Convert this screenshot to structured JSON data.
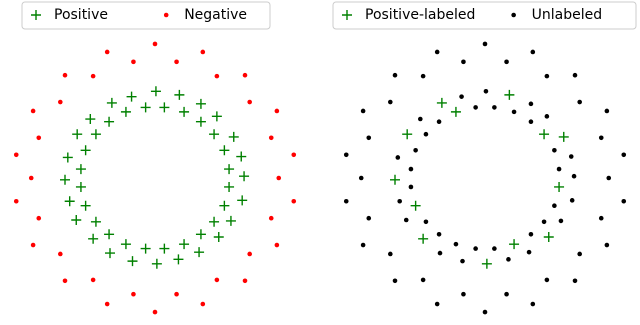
{
  "chart_data": [
    {
      "type": "scatter",
      "xlim": [
        -1.6,
        1.6
      ],
      "ylim": [
        -1.6,
        1.6
      ],
      "legend": "upper center",
      "series": [
        {
          "name": "Positive",
          "color": "#008000",
          "marker": "+",
          "x": [
            0.95,
            0.92,
            0.84,
            0.66,
            0.49,
            0.26,
            0.01,
            -0.25,
            -0.46,
            -0.69,
            -0.83,
            -0.93,
            -0.96,
            -0.91,
            -0.84,
            -0.66,
            -0.48,
            -0.24,
            0.02,
            0.25,
            0.47,
            0.68,
            0.81,
            0.93,
            0.79,
            0.74,
            0.63,
            0.49,
            0.31,
            0.1,
            -0.1,
            -0.31,
            -0.49,
            -0.63,
            -0.74,
            -0.79,
            -0.79,
            -0.74,
            -0.63,
            -0.49,
            -0.31,
            -0.1,
            0.1,
            0.31,
            0.49,
            0.63,
            0.74,
            0.79
          ],
          "y": [
            0.02,
            0.24,
            0.46,
            0.69,
            0.83,
            0.93,
            0.97,
            0.91,
            0.84,
            0.66,
            0.49,
            0.23,
            -0.02,
            -0.26,
            -0.47,
            -0.68,
            -0.84,
            -0.93,
            -0.96,
            -0.91,
            -0.83,
            -0.66,
            -0.48,
            -0.25,
            0.1,
            0.31,
            0.49,
            0.63,
            0.74,
            0.79,
            0.79,
            0.74,
            0.63,
            0.49,
            0.31,
            0.1,
            -0.1,
            -0.31,
            -0.49,
            -0.63,
            -0.74,
            -0.79,
            -0.79,
            -0.74,
            -0.63,
            -0.49,
            -0.31,
            -0.1
          ]
        },
        {
          "name": "Negative",
          "color": "#ff0000",
          "marker": "o",
          "x": [
            1.32,
            1.48,
            1.24,
            1.3,
            1.01,
            0.96,
            0.66,
            0.51,
            0.23,
            0,
            -0.23,
            -0.51,
            -0.66,
            -0.96,
            -1.01,
            -1.3,
            -1.24,
            -1.48,
            -1.32,
            -1.48,
            -1.24,
            -1.3,
            -1.01,
            -0.96,
            -0.66,
            -0.51,
            -0.23,
            0,
            0.23,
            0.51,
            0.66,
            0.96,
            1.01,
            1.3,
            1.24,
            1.48
          ],
          "y": [
            0,
            0.26,
            0.45,
            0.75,
            0.85,
            1.15,
            1.14,
            1.41,
            1.3,
            1.5,
            1.3,
            1.41,
            1.14,
            1.15,
            0.85,
            0.75,
            0.45,
            0.26,
            0,
            -0.26,
            -0.45,
            -0.75,
            -0.85,
            -1.15,
            -1.14,
            -1.41,
            -1.3,
            -1.5,
            -1.3,
            -1.41,
            -1.14,
            -1.15,
            -0.85,
            -0.75,
            -0.45,
            -0.26
          ]
        }
      ]
    },
    {
      "type": "scatter",
      "xlim": [
        -1.6,
        1.6
      ],
      "ylim": [
        -1.6,
        1.6
      ],
      "legend": "upper center",
      "series": [
        {
          "name": "Positive-labeled",
          "color": "#008000",
          "marker": "+",
          "x": [
            0.84,
            0.26,
            -0.46,
            -0.83,
            -0.96,
            -0.66,
            0.02,
            0.68,
            0.63,
            -0.31,
            -0.74,
            0.31,
            0.79
          ],
          "y": [
            0.46,
            0.93,
            0.84,
            0.49,
            -0.02,
            -0.68,
            -0.96,
            -0.66,
            0.49,
            0.74,
            -0.31,
            -0.74,
            -0.1
          ]
        },
        {
          "name": "Unlabeled",
          "color": "#000000",
          "marker": "o",
          "x": [
            0.95,
            0.92,
            0.66,
            0.49,
            0.01,
            -0.25,
            -0.69,
            -0.93,
            -0.91,
            -0.84,
            -0.48,
            -0.24,
            0.25,
            0.47,
            0.81,
            0.93,
            0.79,
            0.74,
            0.49,
            0.31,
            0.1,
            -0.1,
            -0.49,
            -0.63,
            -0.74,
            -0.79,
            -0.79,
            -0.63,
            -0.49,
            -0.31,
            -0.1,
            0.1,
            0.49,
            0.63,
            0.74,
            1.32,
            1.48,
            1.24,
            1.3,
            1.01,
            0.96,
            0.66,
            0.51,
            0.23,
            0,
            -0.23,
            -0.51,
            -0.66,
            -0.96,
            -1.01,
            -1.3,
            -1.24,
            -1.48,
            -1.32,
            -1.48,
            -1.24,
            -1.3,
            -1.01,
            -0.96,
            -0.66,
            -0.51,
            -0.23,
            0,
            0.23,
            0.51,
            0.66,
            0.96,
            1.01,
            1.3,
            1.24,
            1.48
          ],
          "y": [
            0.02,
            0.24,
            0.69,
            0.83,
            0.97,
            0.91,
            0.66,
            0.23,
            -0.26,
            -0.47,
            -0.84,
            -0.93,
            -0.91,
            -0.83,
            -0.48,
            -0.25,
            0.1,
            0.31,
            0.63,
            0.74,
            0.79,
            0.79,
            0.63,
            0.49,
            0.31,
            0.1,
            -0.1,
            -0.49,
            -0.63,
            -0.74,
            -0.79,
            -0.79,
            -0.63,
            -0.49,
            -0.31,
            0,
            0.26,
            0.45,
            0.75,
            0.85,
            1.15,
            1.14,
            1.41,
            1.3,
            1.5,
            1.3,
            1.41,
            1.14,
            1.15,
            0.85,
            0.75,
            0.45,
            0.26,
            0,
            -0.26,
            -0.45,
            -0.75,
            -0.85,
            -1.15,
            -1.14,
            -1.41,
            -1.3,
            -1.5,
            -1.3,
            -1.41,
            -1.14,
            -1.15,
            -0.85,
            -0.75,
            -0.45,
            -0.26
          ]
        }
      ]
    }
  ]
}
